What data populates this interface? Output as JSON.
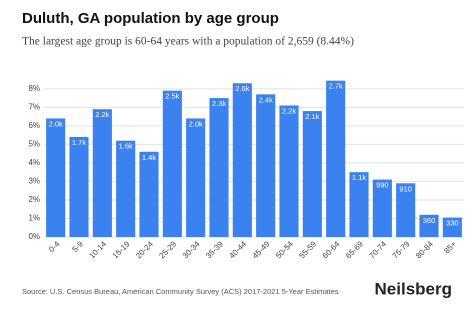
{
  "chart_data": {
    "type": "bar",
    "title": "Duluth, GA population by age group",
    "subtitle": "The largest age group is 60-64 years with a population of 2,659 (8.44%)",
    "source": "Source: U.S. Census Bureau, American Community Survey (ACS) 2017-2021 5-Year Estimates",
    "brand": "Neilsberg",
    "categories": [
      "0-4",
      "5-9",
      "10-14",
      "15-19",
      "20-24",
      "25-29",
      "30-34",
      "35-39",
      "40-44",
      "45-49",
      "50-54",
      "55-59",
      "60-64",
      "65-69",
      "70-74",
      "75-79",
      "80-84",
      "85+"
    ],
    "values": [
      6.4,
      5.4,
      6.9,
      5.2,
      4.6,
      7.9,
      6.4,
      7.5,
      8.3,
      7.7,
      7.1,
      6.8,
      8.44,
      3.5,
      3.1,
      2.9,
      1.2,
      1.05
    ],
    "bar_labels": [
      "2.0k",
      "1.7k",
      "2.2k",
      "1.6k",
      "1.4k",
      "2.5k",
      "2.0k",
      "2.3k",
      "2.6k",
      "2.4k",
      "2.2k",
      "2.1k",
      "2.7k",
      "1.1k",
      "990",
      "910",
      "360",
      "330"
    ],
    "color": "#3b82f0",
    "ylim": [
      0,
      8.8
    ],
    "yticks": [
      {
        "value": 0,
        "label": "0%"
      },
      {
        "value": 1,
        "label": "1%"
      },
      {
        "value": 2,
        "label": "2%"
      },
      {
        "value": 3,
        "label": "3%"
      },
      {
        "value": 4,
        "label": "4%"
      },
      {
        "value": 5,
        "label": "5%"
      },
      {
        "value": 6,
        "label": "6%"
      },
      {
        "value": 7,
        "label": "7%"
      },
      {
        "value": 8,
        "label": "8%"
      }
    ],
    "grid": true
  }
}
